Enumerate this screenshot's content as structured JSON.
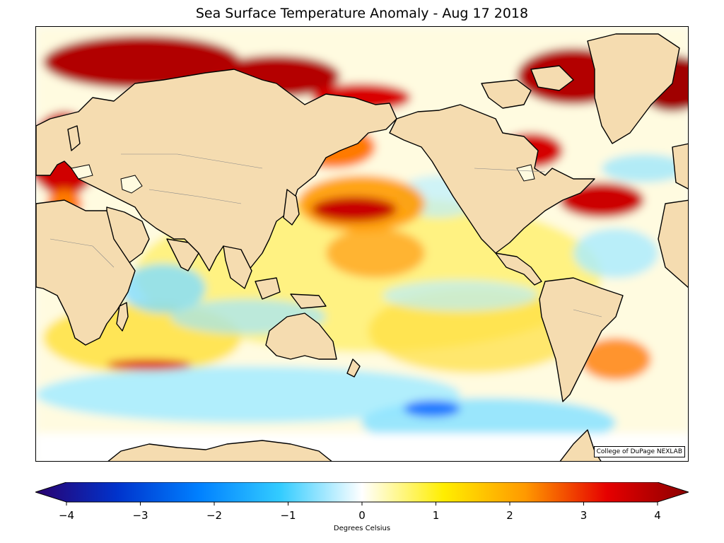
{
  "title": "Sea Surface Temperature Anomaly - Aug 17 2018",
  "credit": "College of DuPage NEXLAB",
  "colorbar": {
    "label": "Degrees Celsius",
    "ticks": [
      "−4",
      "−3",
      "−2",
      "−1",
      "0",
      "1",
      "2",
      "3",
      "4"
    ],
    "min": -4,
    "max": 4,
    "colors": [
      "#2a006e",
      "#0033cc",
      "#0080ff",
      "#33ccff",
      "#ffffff",
      "#ffee00",
      "#ff9900",
      "#e60000",
      "#8b0000"
    ]
  },
  "palette": {
    "land": "#f5dcb0",
    "coast": "#000000",
    "warm_strong": "#b30000",
    "warm": "#ff7a00",
    "warm_light": "#ffe24d",
    "cool": "#66d9ff",
    "cool_strong": "#1a66ff"
  }
}
